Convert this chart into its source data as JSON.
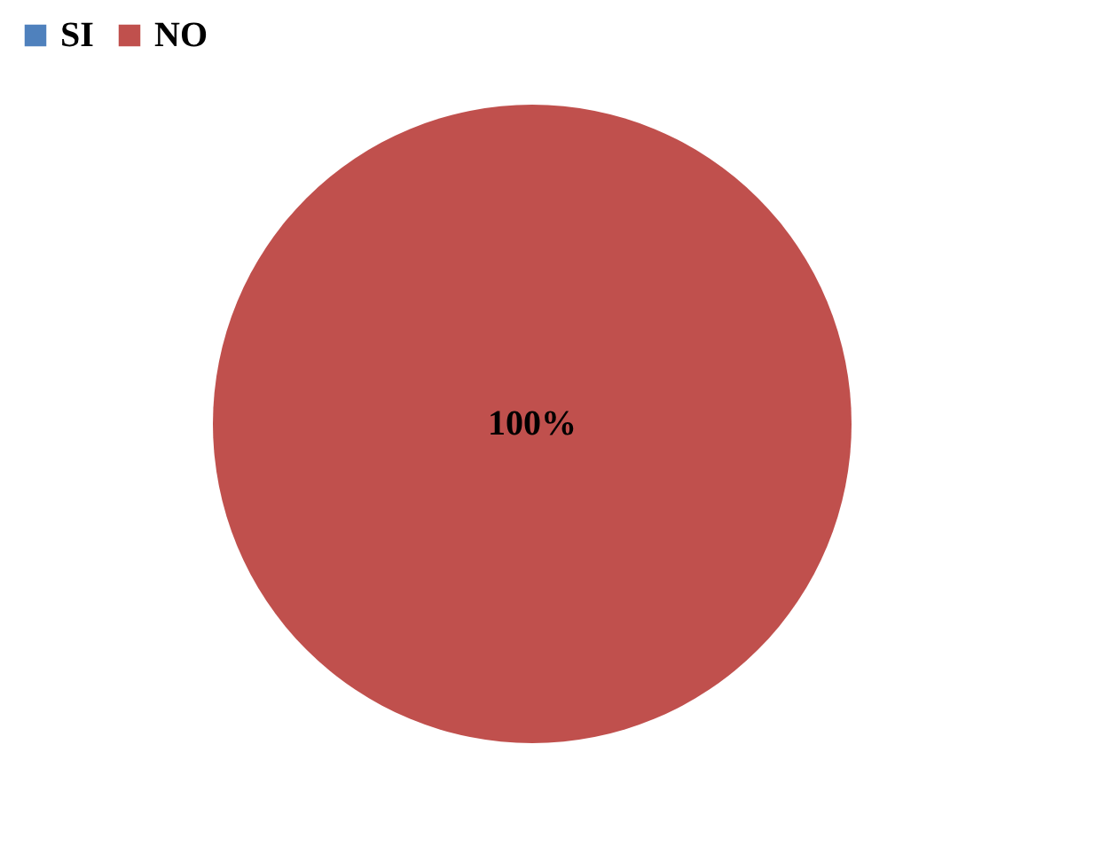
{
  "chart_data": {
    "type": "pie",
    "categories": [
      "SI",
      "NO"
    ],
    "values": [
      0,
      100
    ],
    "colors": [
      "#4f81bd",
      "#c0504d"
    ],
    "value_labels": [
      null,
      "100%"
    ],
    "legend": "top"
  }
}
